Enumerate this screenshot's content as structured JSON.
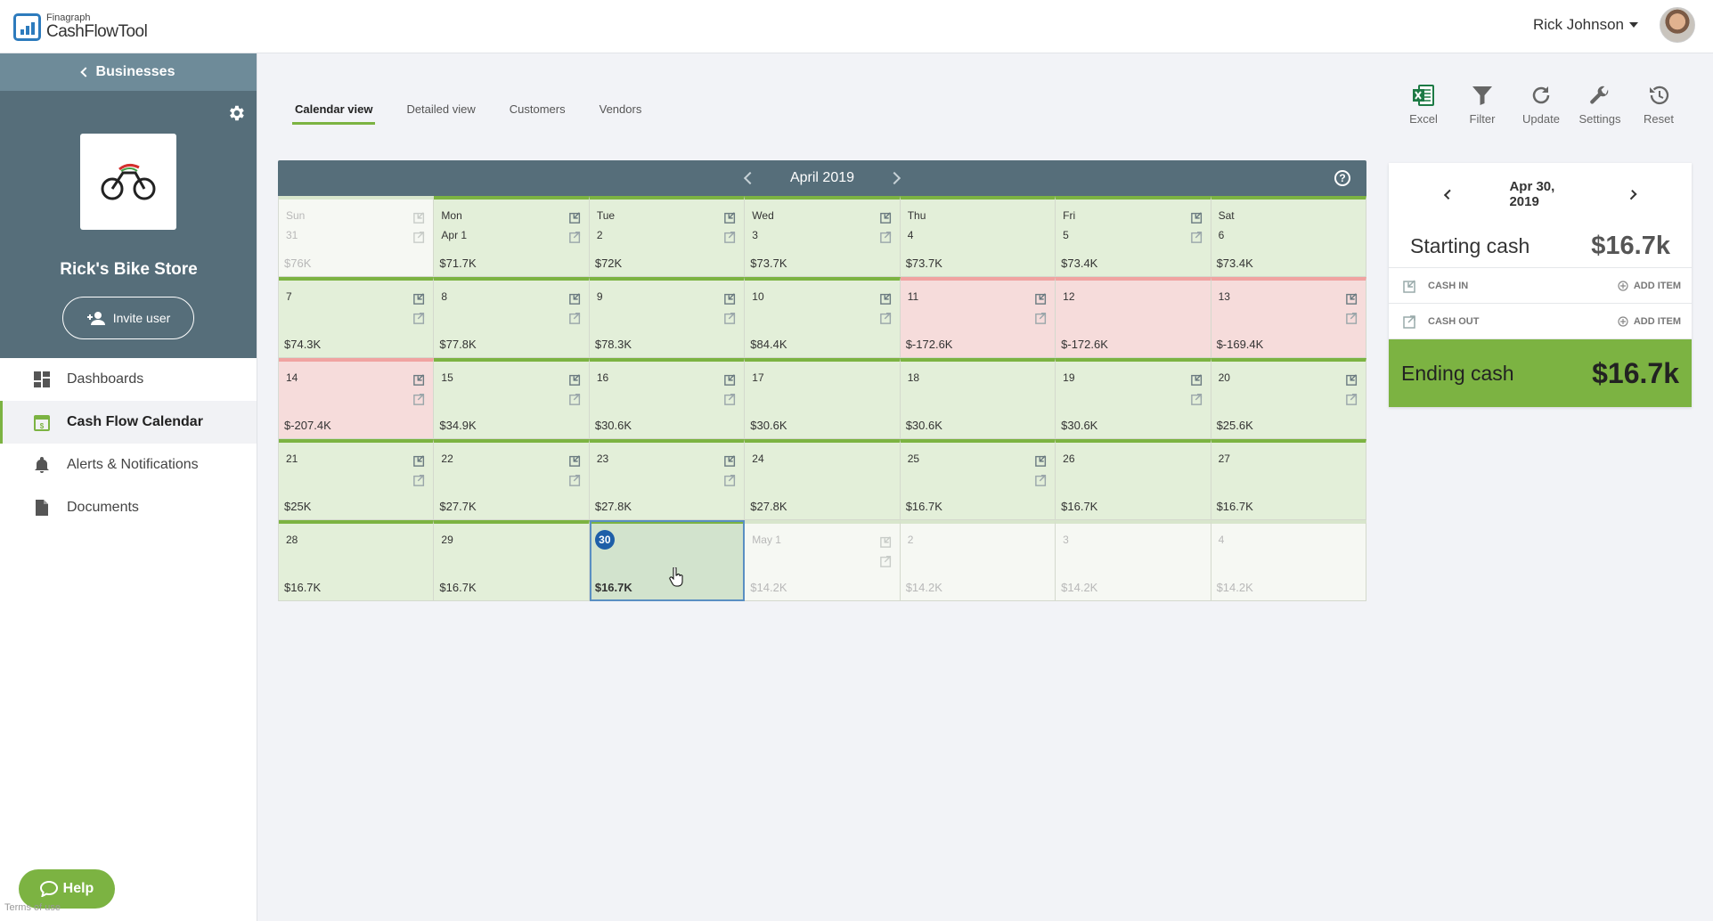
{
  "header": {
    "logo_small": "Finagraph",
    "logo_big": "CashFlowTool",
    "user_name": "Rick Johnson"
  },
  "sidebar": {
    "back_label": "Businesses",
    "store_name": "Rick's Bike Store",
    "invite_label": "Invite user",
    "nav": [
      {
        "label": "Dashboards",
        "icon": "dashboard-icon"
      },
      {
        "label": "Cash Flow Calendar",
        "icon": "calendar-icon"
      },
      {
        "label": "Alerts & Notifications",
        "icon": "bell-icon"
      },
      {
        "label": "Documents",
        "icon": "document-icon"
      }
    ],
    "help_label": "Help",
    "terms_label": "Terms of use"
  },
  "tabs": [
    "Calendar view",
    "Detailed view",
    "Customers",
    "Vendors"
  ],
  "toolbar": [
    "Excel",
    "Filter",
    "Update",
    "Settings",
    "Reset"
  ],
  "calendar": {
    "month_label": "April 2019",
    "weekdays": [
      "Sun",
      "Mon",
      "Tue",
      "Wed",
      "Thu",
      "Fri",
      "Sat"
    ],
    "days": [
      {
        "day": "31",
        "amount": "$76K",
        "state": "other",
        "icons": 2
      },
      {
        "day": "Apr 1",
        "amount": "$71.7K",
        "state": "pos",
        "icons": 2
      },
      {
        "day": "2",
        "amount": "$72K",
        "state": "pos",
        "icons": 2
      },
      {
        "day": "3",
        "amount": "$73.7K",
        "state": "pos",
        "icons": 2
      },
      {
        "day": "4",
        "amount": "$73.7K",
        "state": "pos",
        "icons": 0
      },
      {
        "day": "5",
        "amount": "$73.4K",
        "state": "pos",
        "icons": 2
      },
      {
        "day": "6",
        "amount": "$73.4K",
        "state": "pos",
        "icons": 0
      },
      {
        "day": "7",
        "amount": "$74.3K",
        "state": "pos",
        "icons": 2
      },
      {
        "day": "8",
        "amount": "$77.8K",
        "state": "pos",
        "icons": 2
      },
      {
        "day": "9",
        "amount": "$78.3K",
        "state": "pos",
        "icons": 2
      },
      {
        "day": "10",
        "amount": "$84.4K",
        "state": "pos",
        "icons": 2
      },
      {
        "day": "11",
        "amount": "$-172.6K",
        "state": "neg",
        "icons": 2
      },
      {
        "day": "12",
        "amount": "$-172.6K",
        "state": "neg",
        "icons": 0
      },
      {
        "day": "13",
        "amount": "$-169.4K",
        "state": "neg",
        "icons": 2
      },
      {
        "day": "14",
        "amount": "$-207.4K",
        "state": "neg",
        "icons": 2
      },
      {
        "day": "15",
        "amount": "$34.9K",
        "state": "pos",
        "icons": 2
      },
      {
        "day": "16",
        "amount": "$30.6K",
        "state": "pos",
        "icons": 2
      },
      {
        "day": "17",
        "amount": "$30.6K",
        "state": "pos",
        "icons": 0
      },
      {
        "day": "18",
        "amount": "$30.6K",
        "state": "pos",
        "icons": 0
      },
      {
        "day": "19",
        "amount": "$30.6K",
        "state": "pos",
        "icons": 2
      },
      {
        "day": "20",
        "amount": "$25.6K",
        "state": "pos",
        "icons": 2
      },
      {
        "day": "21",
        "amount": "$25K",
        "state": "pos",
        "icons": 2
      },
      {
        "day": "22",
        "amount": "$27.7K",
        "state": "pos",
        "icons": 2
      },
      {
        "day": "23",
        "amount": "$27.8K",
        "state": "pos",
        "icons": 2
      },
      {
        "day": "24",
        "amount": "$27.8K",
        "state": "pos",
        "icons": 0
      },
      {
        "day": "25",
        "amount": "$16.7K",
        "state": "pos",
        "icons": 2
      },
      {
        "day": "26",
        "amount": "$16.7K",
        "state": "pos",
        "icons": 0
      },
      {
        "day": "27",
        "amount": "$16.7K",
        "state": "pos",
        "icons": 0
      },
      {
        "day": "28",
        "amount": "$16.7K",
        "state": "pos",
        "icons": 0
      },
      {
        "day": "29",
        "amount": "$16.7K",
        "state": "pos",
        "icons": 0
      },
      {
        "day": "30",
        "amount": "$16.7K",
        "state": "selected",
        "icons": 0
      },
      {
        "day": "May 1",
        "amount": "$14.2K",
        "state": "other",
        "icons": 2
      },
      {
        "day": "2",
        "amount": "$14.2K",
        "state": "other",
        "icons": 0
      },
      {
        "day": "3",
        "amount": "$14.2K",
        "state": "other",
        "icons": 0
      },
      {
        "day": "4",
        "amount": "$14.2K",
        "state": "other",
        "icons": 0
      }
    ]
  },
  "panel": {
    "date": "Apr 30, 2019",
    "starting_label": "Starting cash",
    "starting_value": "$16.7k",
    "cash_in_label": "CASH IN",
    "cash_out_label": "CASH OUT",
    "add_item_label": "ADD ITEM",
    "ending_label": "Ending cash",
    "ending_value": "$16.7k"
  },
  "colors": {
    "accent_green": "#7cb342",
    "slate": "#566e7a",
    "positive_cell": "#e3efd9",
    "negative_cell": "#f6dcdb",
    "selected_badge": "#1e5fa8"
  }
}
